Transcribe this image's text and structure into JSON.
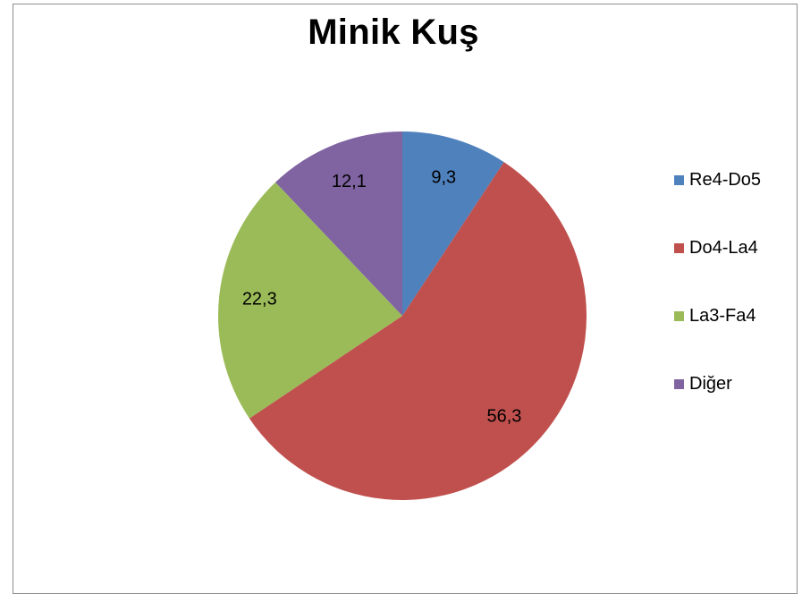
{
  "chart_data": {
    "type": "pie",
    "title": "Minik Kuş",
    "categories": [
      "Re4-Do5",
      "Do4-La4",
      "La3-Fa4",
      "Diğer"
    ],
    "values": [
      9.3,
      56.3,
      22.3,
      12.1
    ],
    "value_labels": [
      "9,3",
      "56,3",
      "22,3",
      "12,1"
    ],
    "colors": [
      "#4f81bd",
      "#c0504d",
      "#9bbb59",
      "#8064a2"
    ],
    "legend_position": "right"
  }
}
